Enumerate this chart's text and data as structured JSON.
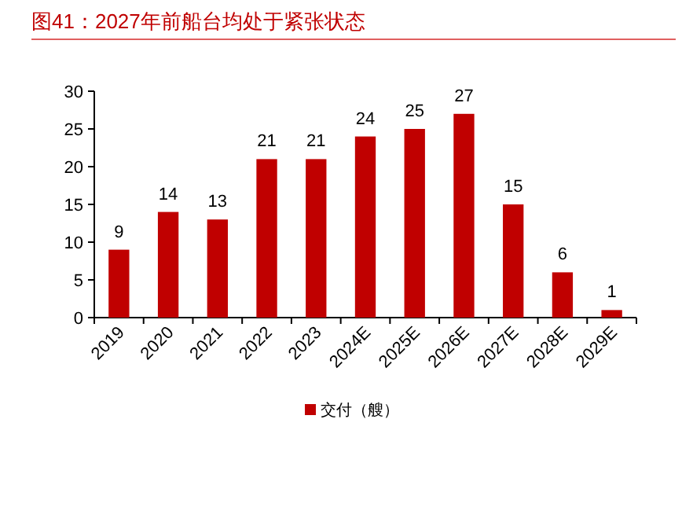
{
  "chart_data": {
    "type": "bar",
    "title": "图41：2027年前船台均处于紧张状态",
    "categories": [
      "2019",
      "2020",
      "2021",
      "2022",
      "2023",
      "2024E",
      "2025E",
      "2026E",
      "2027E",
      "2028E",
      "2029E"
    ],
    "series": [
      {
        "name": "交付（艘）",
        "color": "#c00000",
        "values": [
          9,
          14,
          13,
          21,
          21,
          24,
          25,
          27,
          15,
          6,
          1
        ]
      }
    ],
    "ylim": [
      0,
      30
    ],
    "yticks": [
      0,
      5,
      10,
      15,
      20,
      25,
      30
    ],
    "data_labels": true,
    "legend": "bottom"
  }
}
